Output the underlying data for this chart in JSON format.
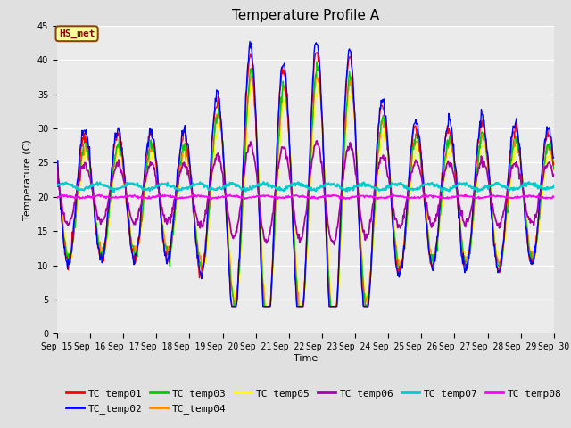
{
  "title": "Temperature Profile A",
  "xlabel": "Time",
  "ylabel": "Temperature (C)",
  "ylim": [
    0,
    45
  ],
  "annotation_label": "HS_met",
  "series_colors": {
    "TC_temp01": "#FF0000",
    "TC_temp02": "#0000FF",
    "TC_temp03": "#00CC00",
    "TC_temp04": "#FF8800",
    "TC_temp05": "#FFFF00",
    "TC_temp06": "#AA00AA",
    "TC_temp07": "#00CCCC",
    "TC_temp08": "#FF00FF"
  },
  "background_color": "#E0E0E0",
  "plot_bg_color": "#EBEBEB",
  "title_fontsize": 11,
  "axis_fontsize": 8,
  "tick_fontsize": 7,
  "legend_fontsize": 8
}
